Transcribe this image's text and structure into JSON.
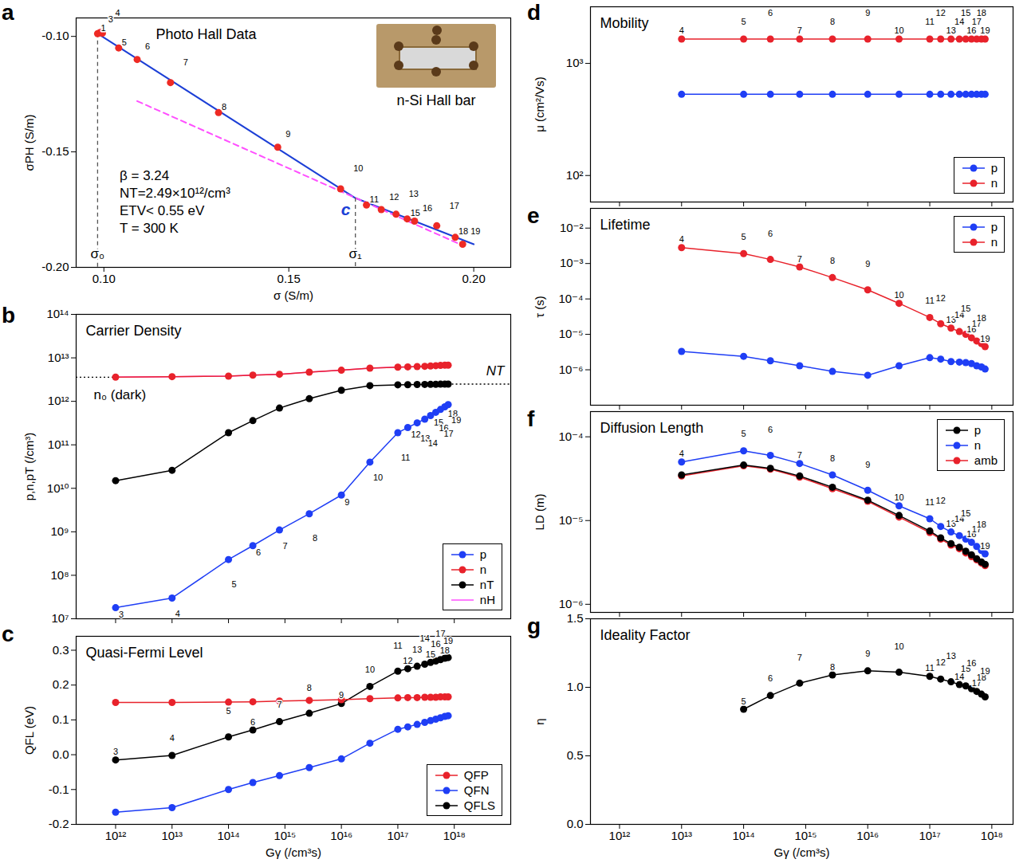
{
  "chart_data": [
    {
      "panel": "a",
      "type": "scatter",
      "title": "Photo Hall Data",
      "x_label": "σ (S/m)",
      "y_label": "σPH (S/m)",
      "xlim": [
        0.0925,
        0.21
      ],
      "ylim": [
        -0.2,
        -0.092
      ],
      "xticks": [
        {
          "value": 0.1,
          "label": "0.10"
        },
        0.15,
        {
          "value": 0.2,
          "label": "0.20"
        }
      ],
      "yticks": [
        {
          "value": -0.2,
          "label": "-0.20"
        },
        -0.15,
        {
          "value": -0.1,
          "label": "-0.10"
        }
      ],
      "x": [
        0.0983,
        0.099,
        0.0996,
        0.104,
        0.109,
        0.118,
        0.131,
        0.147,
        0.164,
        0.171,
        0.175,
        0.179,
        0.182,
        0.184,
        0.19,
        0.195,
        0.197
      ],
      "values": [
        -0.0988,
        -0.0983,
        -0.0986,
        -0.105,
        -0.11,
        -0.12,
        -0.133,
        -0.148,
        -0.166,
        -0.173,
        -0.175,
        -0.177,
        -0.179,
        -0.18,
        -0.182,
        -0.187,
        -0.19
      ],
      "point_labels": [
        "1",
        "3",
        "4",
        "5",
        "6",
        "7",
        "8",
        "9",
        "10",
        "11",
        "12",
        "13",
        "15",
        "16",
        "17",
        "18",
        "19"
      ],
      "color": "#ee2a24",
      "marker": "circle",
      "lines": [
        {
          "x": [
            0.0983,
            0.168,
            0.2
          ],
          "values": [
            -0.0988,
            -0.17,
            -0.19
          ],
          "color": "#1c3fd6",
          "line_style": "solid"
        },
        {
          "x": [
            0.109,
            0.197
          ],
          "values": [
            -0.128,
            -0.1905
          ],
          "color": "#ff4fff",
          "line_style": "dashed"
        }
      ],
      "markers": [
        {
          "label": "σ₀",
          "x": 0.0983,
          "y": -0.0988
        },
        {
          "label": "σ₁",
          "x": 0.168,
          "y": -0.17
        }
      ],
      "crossing": {
        "label": "c",
        "x": 0.168,
        "y": -0.17
      },
      "annotations": [
        "β = 3.24",
        "NT=2.49×10¹²/cm³",
        "ETV< 0.55 eV",
        "T = 300 K"
      ],
      "inset_caption": "n-Si Hall bar"
    },
    {
      "panel": "b",
      "type": "line",
      "title": "Carrier Density",
      "y_label": "p,n,pT (/cm³)",
      "log": true,
      "tick_labels": "y",
      "legend": "lower right",
      "xlim": [
        200000000000.0,
        1e+19
      ],
      "ylim": [
        10000000.0,
        100000000000000.0
      ],
      "xticks": [
        1000000000000.0,
        10000000000000.0,
        100000000000000.0,
        1000000000000000.0,
        1e+16,
        1e+17,
        1e+18
      ],
      "yticks": [
        {
          "value": 10000000.0,
          "label": "10⁷"
        },
        {
          "value": 100000000.0,
          "label": "10⁸"
        },
        {
          "value": 1000000000.0,
          "label": "10⁹"
        },
        {
          "value": 10000000000.0,
          "label": "10¹⁰"
        },
        {
          "value": 100000000000.0,
          "label": "10¹¹"
        },
        {
          "value": 1000000000000.0,
          "label": "10¹²"
        },
        {
          "value": 10000000000000.0,
          "label": "10¹³"
        },
        {
          "value": 100000000000000.0,
          "label": "10¹⁴"
        }
      ],
      "x": [
        1000000000000.0,
        10000000000000.0,
        100000000000000.0,
        270000000000000.0,
        800000000000000.0,
        2700000000000000.0,
        1e+16,
        3.2e+16,
        1e+17,
        1.5e+17,
        2.2e+17,
        3e+17,
        3.8e+17,
        4.7e+17,
        5.7e+17,
        6.8e+17,
        7.8e+17
      ],
      "series": [
        {
          "name": "p",
          "color": "#1f3ef5",
          "marker": "circle",
          "values": [
            18000000.0,
            30000000.0,
            230000000.0,
            480000000.0,
            1100000000.0,
            2600000000.0,
            7000000000.0,
            40000000000.0,
            190000000000.0,
            250000000000.0,
            320000000000.0,
            390000000000.0,
            470000000000.0,
            560000000000.0,
            650000000000.0,
            750000000000.0,
            840000000000.0
          ],
          "point_labels": [
            "3",
            "4",
            "5",
            "6",
            "7",
            "8",
            "9",
            "10",
            "11",
            "12",
            "13",
            "14",
            "15",
            "16",
            "17",
            "18",
            "19"
          ]
        },
        {
          "name": "n",
          "color": "#e8222b",
          "marker": "circle",
          "values": [
            3600000000000.0,
            3700000000000.0,
            3800000000000.0,
            4000000000000.0,
            4200000000000.0,
            4700000000000.0,
            5200000000000.0,
            5800000000000.0,
            6100000000000.0,
            6200000000000.0,
            6300000000000.0,
            6400000000000.0,
            6500000000000.0,
            6600000000000.0,
            6700000000000.0,
            6800000000000.0,
            6800000000000.0
          ]
        },
        {
          "name": "nT",
          "color": "#000000",
          "marker": "circle",
          "values": [
            15000000000.0,
            26000000000.0,
            190000000000.0,
            360000000000.0,
            700000000000.0,
            1150000000000.0,
            1800000000000.0,
            2300000000000.0,
            2400000000000.0,
            2420000000000.0,
            2440000000000.0,
            2450000000000.0,
            2460000000000.0,
            2470000000000.0,
            2480000000000.0,
            2480000000000.0,
            2490000000000.0
          ]
        },
        {
          "name": "nH",
          "color": "#ff4fff",
          "marker": "none",
          "values": [
            3600000000000.0,
            3700000000000.0,
            3800000000000.0,
            4000000000000.0,
            4200000000000.0,
            4700000000000.0,
            5200000000000.0,
            5800000000000.0,
            6100000000000.0,
            6200000000000.0,
            6300000000000.0,
            6400000000000.0,
            6500000000000.0,
            6600000000000.0,
            6700000000000.0,
            6800000000000.0,
            6800000000000.0
          ]
        }
      ],
      "reference_lines": [
        {
          "label": "n₀ (dark)",
          "value": 3600000000000.0,
          "line_style": "dotted"
        },
        {
          "label": "NT",
          "value": 2490000000000.0,
          "line_style": "dotted"
        }
      ]
    },
    {
      "panel": "c",
      "type": "line",
      "title": "Quasi-Fermi Level",
      "x_label": "Gγ (/cm³s)",
      "y_label": "QFL (eV)",
      "log": "x",
      "legend": "lower right",
      "xlim": [
        200000000000.0,
        1e+19
      ],
      "ylim": [
        -0.2,
        0.34
      ],
      "xticks": [
        {
          "value": 1000000000000.0,
          "label": "10¹²"
        },
        {
          "value": 10000000000000.0,
          "label": "10¹³"
        },
        {
          "value": 100000000000000.0,
          "label": "10¹⁴"
        },
        {
          "value": 1000000000000000.0,
          "label": "10¹⁵"
        },
        {
          "value": 1e+16,
          "label": "10¹⁶"
        },
        {
          "value": 1e+17,
          "label": "10¹⁷"
        },
        {
          "value": 1e+18,
          "label": "10¹⁸"
        }
      ],
      "yticks": [
        -0.2,
        -0.1,
        {
          "value": 0,
          "label": "0.0"
        },
        0.1,
        0.2,
        0.3
      ],
      "x": [
        1000000000000.0,
        10000000000000.0,
        100000000000000.0,
        270000000000000.0,
        800000000000000.0,
        2700000000000000.0,
        1e+16,
        3.2e+16,
        1e+17,
        1.5e+17,
        2.2e+17,
        3e+17,
        3.8e+17,
        4.7e+17,
        5.7e+17,
        6.8e+17,
        7.8e+17
      ],
      "series": [
        {
          "name": "QFP",
          "color": "#e8222b",
          "marker": "circle",
          "values": [
            0.15,
            0.15,
            0.151,
            0.152,
            0.154,
            0.156,
            0.158,
            0.161,
            0.163,
            0.164,
            0.164,
            0.165,
            0.165,
            0.165,
            0.166,
            0.166,
            0.166
          ]
        },
        {
          "name": "QFN",
          "color": "#1f3ef5",
          "marker": "circle",
          "values": [
            -0.165,
            -0.152,
            -0.1,
            -0.08,
            -0.06,
            -0.037,
            -0.012,
            0.033,
            0.073,
            0.08,
            0.087,
            0.093,
            0.098,
            0.102,
            0.106,
            0.11,
            0.112
          ]
        },
        {
          "name": "QFLS",
          "color": "#000000",
          "marker": "circle",
          "values": [
            -0.015,
            -0.002,
            0.051,
            0.071,
            0.095,
            0.119,
            0.147,
            0.196,
            0.24,
            0.247,
            0.254,
            0.26,
            0.265,
            0.269,
            0.273,
            0.277,
            0.279
          ],
          "point_labels": [
            "3",
            "4",
            "5",
            "6",
            "7",
            "8",
            "9",
            "10",
            "11",
            "12",
            "13",
            "14",
            "15",
            "16",
            "17",
            "18",
            "19"
          ]
        }
      ]
    },
    {
      "panel": "d",
      "type": "line",
      "title": "Mobility",
      "y_label": "μ (cm²/Vs)",
      "log": true,
      "tick_labels": "y",
      "legend": "lower right",
      "xlim": [
        340000000000.0,
        2.2e+18
      ],
      "ylim": [
        58,
        3200
      ],
      "xticks": [
        1000000000000.0,
        10000000000000.0,
        100000000000000.0,
        1000000000000000.0,
        1e+16,
        1e+17,
        1e+18
      ],
      "yticks": [
        {
          "value": 100,
          "label": "10²"
        },
        {
          "value": 1000,
          "label": "10³"
        }
      ],
      "x": [
        10000000000000.0,
        100000000000000.0,
        270000000000000.0,
        800000000000000.0,
        2700000000000000.0,
        1e+16,
        3.2e+16,
        1e+17,
        1.5e+17,
        2.2e+17,
        3e+17,
        3.8e+17,
        4.7e+17,
        5.7e+17,
        6.8e+17,
        7.8e+17
      ],
      "series": [
        {
          "name": "p",
          "color": "#1f3ef5",
          "marker": "circle",
          "values": [
            530,
            530,
            530,
            530,
            530,
            530,
            530,
            530,
            530,
            530,
            530,
            530,
            530,
            530,
            530,
            530
          ]
        },
        {
          "name": "n",
          "color": "#e8222b",
          "marker": "circle",
          "values": [
            1650,
            1650,
            1650,
            1650,
            1650,
            1650,
            1650,
            1650,
            1650,
            1650,
            1650,
            1650,
            1650,
            1650,
            1650,
            1650
          ],
          "point_labels": [
            "4",
            "5",
            "6",
            "7",
            "8",
            "9",
            "10",
            "11",
            "12",
            "13",
            "14",
            "15",
            "16",
            "17",
            "18",
            "19"
          ]
        }
      ]
    },
    {
      "panel": "e",
      "type": "line",
      "title": "Lifetime",
      "y_label": "τ (s)",
      "log": true,
      "tick_labels": "y",
      "legend": "upper right",
      "xlim": [
        340000000000.0,
        2.2e+18
      ],
      "ylim": [
        1e-07,
        0.036
      ],
      "xticks": [
        1000000000000.0,
        10000000000000.0,
        100000000000000.0,
        1000000000000000.0,
        1e+16,
        1e+17,
        1e+18
      ],
      "yticks": [
        {
          "value": 1e-06,
          "label": "10⁻⁶"
        },
        {
          "value": 1e-05,
          "label": "10⁻⁵"
        },
        {
          "value": 0.0001,
          "label": "10⁻⁴"
        },
        {
          "value": 0.001,
          "label": "10⁻³"
        },
        {
          "value": 0.01,
          "label": "10⁻²"
        }
      ],
      "x": [
        10000000000000.0,
        100000000000000.0,
        270000000000000.0,
        800000000000000.0,
        2700000000000000.0,
        1e+16,
        3.2e+16,
        1e+17,
        1.5e+17,
        2.2e+17,
        3e+17,
        3.8e+17,
        4.7e+17,
        5.7e+17,
        6.8e+17,
        7.8e+17
      ],
      "series": [
        {
          "name": "p",
          "color": "#1f3ef5",
          "marker": "circle",
          "values": [
            3.3e-06,
            2.4e-06,
            1.8e-06,
            1.3e-06,
            9e-07,
            7e-07,
            1.3e-06,
            2.2e-06,
            2e-06,
            1.7e-06,
            1.65e-06,
            1.6e-06,
            1.5e-06,
            1.3e-06,
            1.2e-06,
            1.05e-06
          ]
        },
        {
          "name": "n",
          "color": "#e8222b",
          "marker": "circle",
          "values": [
            0.0028,
            0.0019,
            0.0013,
            0.0008,
            0.0004,
            0.00018,
            7.5e-05,
            3e-05,
            2e-05,
            1.5e-05,
            1.2e-05,
            1e-05,
            8e-06,
            6.5e-06,
            5.5e-06,
            4.5e-06
          ],
          "point_labels": [
            "4",
            "5",
            "6",
            "7",
            "8",
            "9",
            "10",
            "11",
            "12",
            "13",
            "14",
            "15",
            "16",
            "17",
            "18",
            "19"
          ]
        }
      ]
    },
    {
      "panel": "f",
      "type": "line",
      "title": "Diffusion Length",
      "y_label": "LD (m)",
      "log": true,
      "tick_labels": "y",
      "legend": "upper right",
      "xlim": [
        340000000000.0,
        2.2e+18
      ],
      "ylim": [
        8e-07,
        0.0002
      ],
      "xticks": [
        1000000000000.0,
        10000000000000.0,
        100000000000000.0,
        1000000000000000.0,
        1e+16,
        1e+17,
        1e+18
      ],
      "yticks": [
        {
          "value": 1e-06,
          "label": "10⁻⁶"
        },
        {
          "value": 1e-05,
          "label": "10⁻⁵"
        },
        {
          "value": 0.0001,
          "label": "10⁻⁴"
        }
      ],
      "x": [
        10000000000000.0,
        100000000000000.0,
        270000000000000.0,
        800000000000000.0,
        2700000000000000.0,
        1e+16,
        3.2e+16,
        1e+17,
        1.5e+17,
        2.2e+17,
        3e+17,
        3.8e+17,
        4.7e+17,
        5.7e+17,
        6.8e+17,
        7.8e+17
      ],
      "series": [
        {
          "name": "p",
          "color": "#000000",
          "marker": "circle",
          "values": [
            3.5e-05,
            4.6e-05,
            4.2e-05,
            3.4e-05,
            2.5e-05,
            1.75e-05,
            1.15e-05,
            7.5e-06,
            6.2e-06,
            5.3e-06,
            4.8e-06,
            4.3e-06,
            3.9e-06,
            3.5e-06,
            3.2e-06,
            3e-06
          ]
        },
        {
          "name": "n",
          "color": "#1f3ef5",
          "marker": "circle",
          "values": [
            5e-05,
            6.8e-05,
            6e-05,
            4.8e-05,
            3.5e-05,
            2.3e-05,
            1.5e-05,
            1.05e-05,
            8.5e-06,
            7.3e-06,
            6.6e-06,
            6e-06,
            5.5e-06,
            4.9e-06,
            4.4e-06,
            4e-06
          ],
          "point_labels": [
            "4",
            "5",
            "6",
            "7",
            "8",
            "9",
            "10",
            "11",
            "12",
            "13",
            "14",
            "15",
            "16",
            "17",
            "18",
            "19"
          ]
        },
        {
          "name": "amb",
          "color": "#e8222b",
          "marker": "circle",
          "values": [
            3.4e-05,
            4.5e-05,
            4.1e-05,
            3.3e-05,
            2.4e-05,
            1.7e-05,
            1.1e-05,
            7.2e-06,
            6e-06,
            5.1e-06,
            4.6e-06,
            4.1e-06,
            3.7e-06,
            3.4e-06,
            3.1e-06,
            2.9e-06
          ]
        }
      ]
    },
    {
      "panel": "g",
      "type": "line",
      "title": "Ideality Factor",
      "x_label": "Gγ (/cm³s)",
      "y_label": "η",
      "log": "x",
      "xlim": [
        340000000000.0,
        2.2e+18
      ],
      "ylim": [
        0,
        1.5
      ],
      "xticks": [
        {
          "value": 1000000000000.0,
          "label": "10¹²"
        },
        {
          "value": 10000000000000.0,
          "label": "10¹³"
        },
        {
          "value": 100000000000000.0,
          "label": "10¹⁴"
        },
        {
          "value": 1000000000000000.0,
          "label": "10¹⁵"
        },
        {
          "value": 1e+16,
          "label": "10¹⁶"
        },
        {
          "value": 1e+17,
          "label": "10¹⁷"
        },
        {
          "value": 1e+18,
          "label": "10¹⁸"
        }
      ],
      "yticks": [
        {
          "value": 0,
          "label": "0.0"
        },
        0.5,
        {
          "value": 1,
          "label": "1.0"
        },
        1.5
      ],
      "x": [
        100000000000000.0,
        270000000000000.0,
        800000000000000.0,
        2700000000000000.0,
        1e+16,
        3.2e+16,
        1e+17,
        1.5e+17,
        2.2e+17,
        3e+17,
        3.8e+17,
        4.7e+17,
        5.7e+17,
        6.8e+17,
        7.8e+17
      ],
      "values": [
        0.84,
        0.94,
        1.03,
        1.09,
        1.12,
        1.11,
        1.08,
        1.06,
        1.04,
        1.02,
        1.01,
        0.99,
        0.97,
        0.95,
        0.93
      ],
      "point_labels": [
        "5",
        "6",
        "7",
        "8",
        "9",
        "10",
        "11",
        "12",
        "13",
        "14",
        "15",
        "16",
        "17",
        "18",
        "19"
      ],
      "color": "#000000",
      "marker": "circle"
    }
  ]
}
